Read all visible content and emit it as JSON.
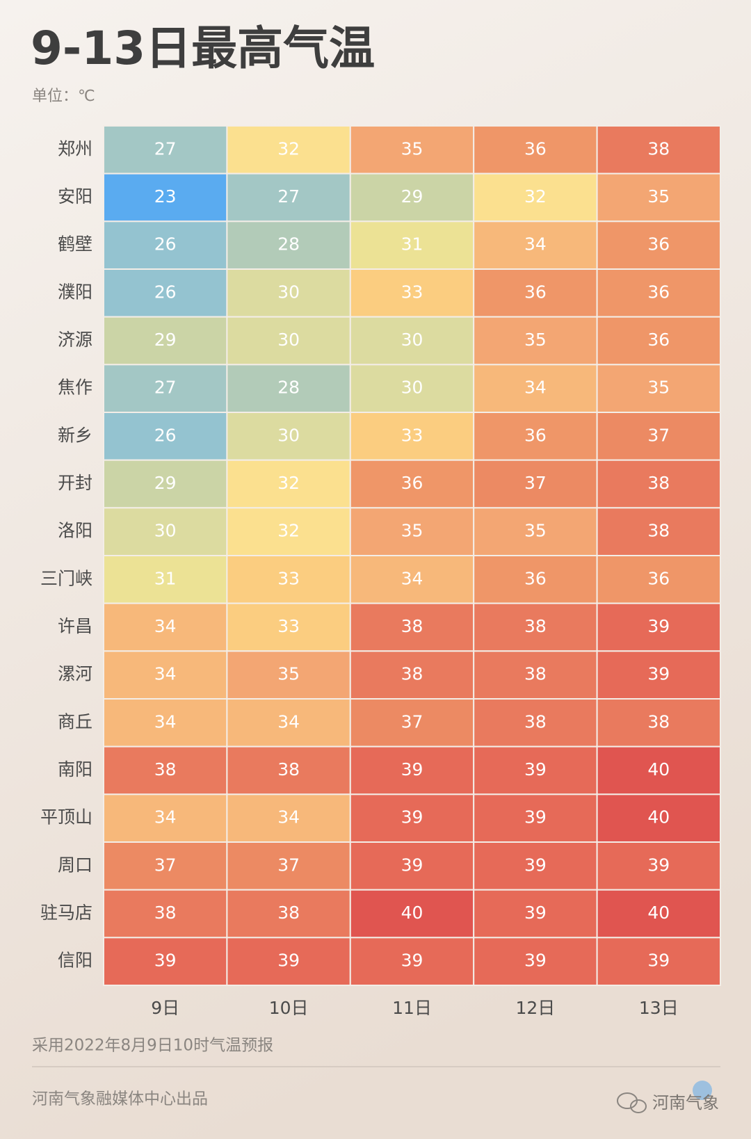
{
  "chart_data": {
    "type": "heatmap",
    "title": "9-13日最高气温",
    "subtitle": "单位：℃",
    "x": [
      "9日",
      "10日",
      "11日",
      "12日",
      "13日"
    ],
    "y": [
      "郑州",
      "安阳",
      "鹤壁",
      "濮阳",
      "济源",
      "焦作",
      "新乡",
      "开封",
      "洛阳",
      "三门峡",
      "许昌",
      "漯河",
      "商丘",
      "南阳",
      "平顶山",
      "周口",
      "驻马店",
      "信阳"
    ],
    "values": [
      [
        27,
        32,
        35,
        36,
        38
      ],
      [
        23,
        27,
        29,
        32,
        35
      ],
      [
        26,
        28,
        31,
        34,
        36
      ],
      [
        26,
        30,
        33,
        36,
        36
      ],
      [
        29,
        30,
        30,
        35,
        36
      ],
      [
        27,
        28,
        30,
        34,
        35
      ],
      [
        26,
        30,
        33,
        36,
        37
      ],
      [
        29,
        32,
        36,
        37,
        38
      ],
      [
        30,
        32,
        35,
        35,
        38
      ],
      [
        31,
        33,
        34,
        36,
        36
      ],
      [
        34,
        33,
        38,
        38,
        39
      ],
      [
        34,
        35,
        38,
        38,
        39
      ],
      [
        34,
        34,
        37,
        38,
        38
      ],
      [
        38,
        38,
        39,
        39,
        40
      ],
      [
        34,
        34,
        39,
        39,
        40
      ],
      [
        37,
        37,
        39,
        39,
        39
      ],
      [
        38,
        38,
        40,
        39,
        40
      ],
      [
        39,
        39,
        39,
        39,
        39
      ]
    ],
    "colorscale": [
      "#5aabf0",
      "#71b4e4",
      "#86bcd9",
      "#94c3d0",
      "#a3c7c5",
      "#b2cbb8",
      "#cbd4a6",
      "#dcdba0",
      "#ece295",
      "#fbe08f",
      "#fbcd80",
      "#f7b87a",
      "#f3a673",
      "#ef9668",
      "#ec8a63",
      "#e97a5e",
      "#e66a58",
      "#e05550"
    ],
    "note": "采用2022年8月9日10时气温预报",
    "source": "河南气象融媒体中心出品",
    "logo": "河南气象"
  }
}
